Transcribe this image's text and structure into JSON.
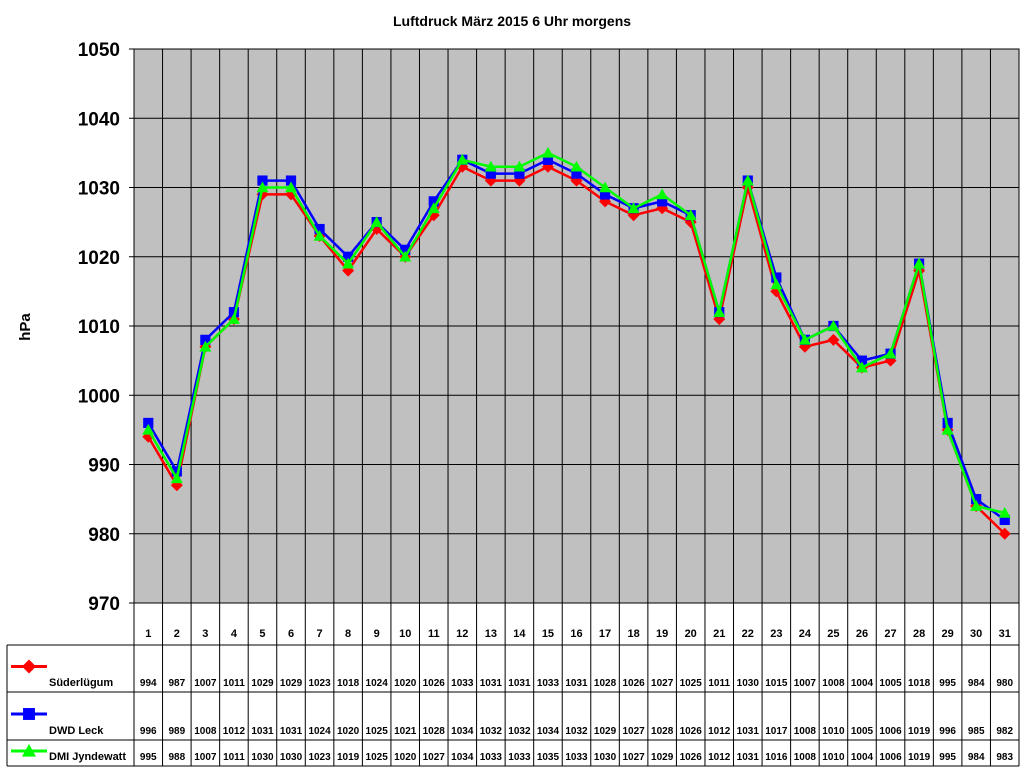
{
  "chart_data": {
    "type": "line",
    "title": "Luftdruck März 2015 6 Uhr morgens",
    "xlabel": "",
    "ylabel": "hPa",
    "ylim": [
      970,
      1050
    ],
    "yticks": [
      "970",
      "980",
      "990",
      "1000",
      "1010",
      "1020",
      "1030",
      "1040",
      "1050"
    ],
    "categories": [
      "1",
      "2",
      "3",
      "4",
      "5",
      "6",
      "7",
      "8",
      "9",
      "10",
      "11",
      "12",
      "13",
      "14",
      "15",
      "16",
      "17",
      "18",
      "19",
      "20",
      "21",
      "22",
      "23",
      "24",
      "25",
      "26",
      "27",
      "28",
      "29",
      "30",
      "31"
    ],
    "grid": true,
    "legend": "table-left",
    "colors": {
      "plot_background": "#c0c0c0",
      "grid": "#000000"
    },
    "series": [
      {
        "name": "Süderlügum",
        "color": "#ff0000",
        "marker": "diamond",
        "values": [
          994,
          987,
          1007,
          1011,
          1029,
          1029,
          1023,
          1018,
          1024,
          1020,
          1026,
          1033,
          1031,
          1031,
          1033,
          1031,
          1028,
          1026,
          1027,
          1025,
          1011,
          1030,
          1015,
          1007,
          1008,
          1004,
          1005,
          1018,
          995,
          984,
          980
        ]
      },
      {
        "name": "DWD Leck",
        "color": "#0000ff",
        "marker": "square",
        "values": [
          996,
          989,
          1008,
          1012,
          1031,
          1031,
          1024,
          1020,
          1025,
          1021,
          1028,
          1034,
          1032,
          1032,
          1034,
          1032,
          1029,
          1027,
          1028,
          1026,
          1012,
          1031,
          1017,
          1008,
          1010,
          1005,
          1006,
          1019,
          996,
          985,
          982
        ]
      },
      {
        "name": "DMI Jyndewatt",
        "color": "#00ff00",
        "marker": "triangle",
        "values": [
          995,
          988,
          1007,
          1011,
          1030,
          1030,
          1023,
          1019,
          1025,
          1020,
          1027,
          1034,
          1033,
          1033,
          1035,
          1033,
          1030,
          1027,
          1029,
          1026,
          1012,
          1031,
          1016,
          1008,
          1010,
          1004,
          1006,
          1019,
          995,
          984,
          983
        ]
      }
    ]
  }
}
